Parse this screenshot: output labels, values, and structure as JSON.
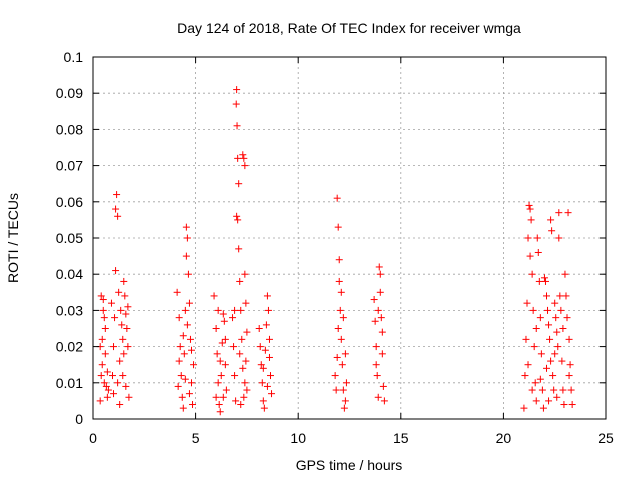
{
  "chart_data": {
    "type": "scatter",
    "title": "Day 124 of 2018, Rate Of TEC Index for receiver wmga",
    "xlabel": "GPS time / hours",
    "ylabel": "ROTI / TECUs",
    "xlim": [
      0,
      25
    ],
    "ylim": [
      0,
      0.1
    ],
    "xticks": [
      0,
      5,
      10,
      15,
      20,
      25
    ],
    "yticks": [
      0,
      0.01,
      0.02,
      0.03,
      0.04,
      0.05,
      0.06,
      0.07,
      0.08,
      0.09,
      0.1
    ],
    "xtick_labels": [
      "0",
      "5",
      "10",
      "15",
      "20",
      "25"
    ],
    "ytick_labels": [
      "0",
      "0.01",
      "0.02",
      "0.03",
      "0.04",
      "0.05",
      "0.06",
      "0.07",
      "0.08",
      "0.09",
      "0.1"
    ],
    "grid": true,
    "marker": "plus",
    "color": "#ff0000",
    "points": [
      [
        0.35,
        0.005
      ],
      [
        0.4,
        0.012
      ],
      [
        0.45,
        0.022
      ],
      [
        0.5,
        0.033
      ],
      [
        0.55,
        0.028
      ],
      [
        0.6,
        0.018
      ],
      [
        0.65,
        0.009
      ],
      [
        0.7,
        0.006
      ],
      [
        0.4,
        0.034
      ],
      [
        0.5,
        0.03
      ],
      [
        0.6,
        0.025
      ],
      [
        0.45,
        0.015
      ],
      [
        0.55,
        0.01
      ],
      [
        0.35,
        0.02
      ],
      [
        0.7,
        0.013
      ],
      [
        0.75,
        0.008
      ],
      [
        0.9,
        0.032
      ],
      [
        1.0,
        0.02
      ],
      [
        1.05,
        0.028
      ],
      [
        1.1,
        0.058
      ],
      [
        1.15,
        0.062
      ],
      [
        1.2,
        0.056
      ],
      [
        1.1,
        0.041
      ],
      [
        1.25,
        0.035
      ],
      [
        1.3,
        0.016
      ],
      [
        1.2,
        0.01
      ],
      [
        1.0,
        0.007
      ],
      [
        1.35,
        0.03
      ],
      [
        1.4,
        0.026
      ],
      [
        1.45,
        0.012
      ],
      [
        1.5,
        0.038
      ],
      [
        1.55,
        0.034
      ],
      [
        1.6,
        0.029
      ],
      [
        1.65,
        0.025
      ],
      [
        1.7,
        0.02
      ],
      [
        1.75,
        0.006
      ],
      [
        1.6,
        0.009
      ],
      [
        1.5,
        0.018
      ],
      [
        1.7,
        0.031
      ],
      [
        1.45,
        0.022
      ],
      [
        1.3,
        0.004
      ],
      [
        0.95,
        0.012
      ],
      [
        4.1,
        0.035
      ],
      [
        4.2,
        0.028
      ],
      [
        4.25,
        0.02
      ],
      [
        4.3,
        0.012
      ],
      [
        4.35,
        0.006
      ],
      [
        4.4,
        0.003
      ],
      [
        4.15,
        0.009
      ],
      [
        4.45,
        0.018
      ],
      [
        4.5,
        0.03
      ],
      [
        4.55,
        0.045
      ],
      [
        4.6,
        0.05
      ],
      [
        4.55,
        0.053
      ],
      [
        4.65,
        0.04
      ],
      [
        4.7,
        0.032
      ],
      [
        4.75,
        0.022
      ],
      [
        4.8,
        0.01
      ],
      [
        4.85,
        0.004
      ],
      [
        4.9,
        0.015
      ],
      [
        4.6,
        0.026
      ],
      [
        4.4,
        0.023
      ],
      [
        4.2,
        0.016
      ],
      [
        4.7,
        0.007
      ],
      [
        4.5,
        0.011
      ],
      [
        4.8,
        0.019
      ],
      [
        5.9,
        0.034
      ],
      [
        6.0,
        0.025
      ],
      [
        6.05,
        0.018
      ],
      [
        6.1,
        0.01
      ],
      [
        6.15,
        0.004
      ],
      [
        6.2,
        0.002
      ],
      [
        6.25,
        0.012
      ],
      [
        6.3,
        0.021
      ],
      [
        6.35,
        0.029
      ],
      [
        6.4,
        0.027
      ],
      [
        6.45,
        0.015
      ],
      [
        6.5,
        0.008
      ],
      [
        6.0,
        0.006
      ],
      [
        6.2,
        0.016
      ],
      [
        6.35,
        0.006
      ],
      [
        6.1,
        0.03
      ],
      [
        6.45,
        0.022
      ],
      [
        6.8,
        0.028
      ],
      [
        6.85,
        0.02
      ],
      [
        6.9,
        0.012
      ],
      [
        6.95,
        0.005
      ],
      [
        7.0,
        0.091
      ],
      [
        6.98,
        0.087
      ],
      [
        7.02,
        0.081
      ],
      [
        7.05,
        0.072
      ],
      [
        7.1,
        0.065
      ],
      [
        7.0,
        0.056
      ],
      [
        7.05,
        0.055
      ],
      [
        7.1,
        0.047
      ],
      [
        7.15,
        0.038
      ],
      [
        7.2,
        0.03
      ],
      [
        7.25,
        0.022
      ],
      [
        7.3,
        0.014
      ],
      [
        7.35,
        0.006
      ],
      [
        7.3,
        0.073
      ],
      [
        7.35,
        0.072
      ],
      [
        7.4,
        0.07
      ],
      [
        7.4,
        0.04
      ],
      [
        7.45,
        0.032
      ],
      [
        7.5,
        0.024
      ],
      [
        7.45,
        0.016
      ],
      [
        7.5,
        0.008
      ],
      [
        7.2,
        0.004
      ],
      [
        6.9,
        0.03
      ],
      [
        7.15,
        0.018
      ],
      [
        7.4,
        0.01
      ],
      [
        8.1,
        0.025
      ],
      [
        8.15,
        0.02
      ],
      [
        8.2,
        0.015
      ],
      [
        8.25,
        0.01
      ],
      [
        8.3,
        0.005
      ],
      [
        8.35,
        0.003
      ],
      [
        8.4,
        0.019
      ],
      [
        8.45,
        0.026
      ],
      [
        8.5,
        0.034
      ],
      [
        8.55,
        0.03
      ],
      [
        8.6,
        0.022
      ],
      [
        8.65,
        0.012
      ],
      [
        8.7,
        0.007
      ],
      [
        8.3,
        0.014
      ],
      [
        8.5,
        0.009
      ],
      [
        8.6,
        0.017
      ],
      [
        11.8,
        0.012
      ],
      [
        11.85,
        0.008
      ],
      [
        11.9,
        0.061
      ],
      [
        11.95,
        0.053
      ],
      [
        12.0,
        0.044
      ],
      [
        12.0,
        0.038
      ],
      [
        12.05,
        0.03
      ],
      [
        12.1,
        0.022
      ],
      [
        12.15,
        0.015
      ],
      [
        12.2,
        0.008
      ],
      [
        12.25,
        0.003
      ],
      [
        12.3,
        0.018
      ],
      [
        12.35,
        0.01
      ],
      [
        12.1,
        0.035
      ],
      [
        11.95,
        0.025
      ],
      [
        12.2,
        0.028
      ],
      [
        12.3,
        0.005
      ],
      [
        11.9,
        0.017
      ],
      [
        13.7,
        0.033
      ],
      [
        13.75,
        0.027
      ],
      [
        13.8,
        0.02
      ],
      [
        13.85,
        0.012
      ],
      [
        13.9,
        0.006
      ],
      [
        13.95,
        0.042
      ],
      [
        14.0,
        0.04
      ],
      [
        14.0,
        0.035
      ],
      [
        14.05,
        0.028
      ],
      [
        14.1,
        0.018
      ],
      [
        14.15,
        0.009
      ],
      [
        14.2,
        0.005
      ],
      [
        13.8,
        0.015
      ],
      [
        14.1,
        0.024
      ],
      [
        13.9,
        0.03
      ],
      [
        21.0,
        0.003
      ],
      [
        21.05,
        0.012
      ],
      [
        21.1,
        0.022
      ],
      [
        21.15,
        0.032
      ],
      [
        21.2,
        0.05
      ],
      [
        21.25,
        0.059
      ],
      [
        21.3,
        0.058
      ],
      [
        21.35,
        0.055
      ],
      [
        21.3,
        0.045
      ],
      [
        21.4,
        0.04
      ],
      [
        21.45,
        0.03
      ],
      [
        21.5,
        0.02
      ],
      [
        21.55,
        0.01
      ],
      [
        21.6,
        0.005
      ],
      [
        21.65,
        0.05
      ],
      [
        21.7,
        0.046
      ],
      [
        21.75,
        0.038
      ],
      [
        21.8,
        0.028
      ],
      [
        21.85,
        0.018
      ],
      [
        21.9,
        0.008
      ],
      [
        21.95,
        0.003
      ],
      [
        22.0,
        0.039
      ],
      [
        22.05,
        0.038
      ],
      [
        22.1,
        0.034
      ],
      [
        22.15,
        0.03
      ],
      [
        22.2,
        0.026
      ],
      [
        22.25,
        0.022
      ],
      [
        22.3,
        0.055
      ],
      [
        22.35,
        0.052
      ],
      [
        22.3,
        0.016
      ],
      [
        22.4,
        0.012
      ],
      [
        22.45,
        0.008
      ],
      [
        22.5,
        0.032
      ],
      [
        22.55,
        0.028
      ],
      [
        22.6,
        0.024
      ],
      [
        22.65,
        0.02
      ],
      [
        22.7,
        0.05
      ],
      [
        22.7,
        0.057
      ],
      [
        22.75,
        0.034
      ],
      [
        22.8,
        0.03
      ],
      [
        22.85,
        0.016
      ],
      [
        22.9,
        0.008
      ],
      [
        22.95,
        0.004
      ],
      [
        23.0,
        0.04
      ],
      [
        23.05,
        0.034
      ],
      [
        23.1,
        0.028
      ],
      [
        23.15,
        0.057
      ],
      [
        23.2,
        0.022
      ],
      [
        23.25,
        0.015
      ],
      [
        23.3,
        0.008
      ],
      [
        23.35,
        0.004
      ],
      [
        21.2,
        0.015
      ],
      [
        21.6,
        0.025
      ],
      [
        22.1,
        0.014
      ],
      [
        22.5,
        0.018
      ],
      [
        22.9,
        0.025
      ],
      [
        23.2,
        0.012
      ],
      [
        21.8,
        0.011
      ],
      [
        22.6,
        0.006
      ],
      [
        21.4,
        0.008
      ],
      [
        22.2,
        0.005
      ]
    ]
  }
}
